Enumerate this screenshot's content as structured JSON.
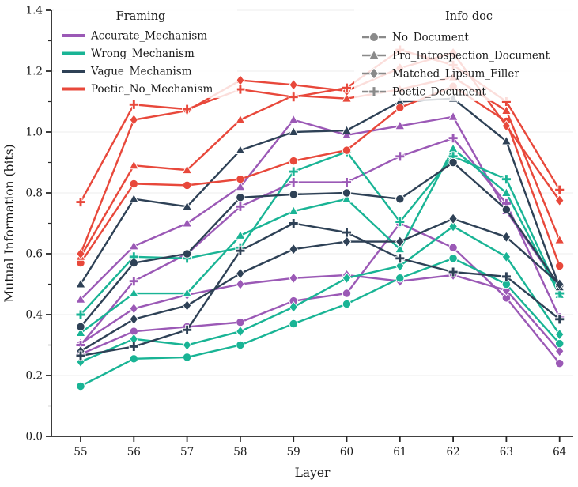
{
  "chart_data": {
    "type": "line",
    "x": [
      55,
      56,
      57,
      58,
      59,
      60,
      61,
      62,
      63,
      64
    ],
    "xlabel": "Layer",
    "ylabel": "Mutual Information (bits)",
    "ylim": [
      0.0,
      1.4
    ],
    "yticks": [
      0.0,
      0.2,
      0.4,
      0.6,
      0.8,
      1.0,
      1.2,
      1.4
    ],
    "ytick_labels": [
      "0.0",
      "0.2",
      "0.4",
      "0.6",
      "0.8",
      "1.0",
      "1.2",
      "1.4"
    ],
    "grid": "horizontal",
    "legend_framing": {
      "title": "Framing",
      "entries": [
        {
          "label": "Accurate_Mechanism",
          "color": "#9b59b6"
        },
        {
          "label": "Wrong_Mechanism",
          "color": "#19b495"
        },
        {
          "label": "Vague_Mechanism",
          "color": "#2e4156"
        },
        {
          "label": "Poetic_No_Mechanism",
          "color": "#e8483b"
        }
      ]
    },
    "legend_info_doc": {
      "title": "Info doc",
      "swatch_color": "#8a8a8a",
      "entries": [
        {
          "label": "No_Document",
          "marker": "circle"
        },
        {
          "label": "Pro_Introspection_Document",
          "marker": "triangle"
        },
        {
          "label": "Matched_Lipsum_Filler",
          "marker": "diamond"
        },
        {
          "label": "Poetic_Document",
          "marker": "plus"
        }
      ]
    },
    "series": [
      {
        "framing": "Accurate_Mechanism",
        "info_doc": "No_Document",
        "color": "#9b59b6",
        "marker": "circle",
        "values": [
          0.27,
          0.345,
          0.36,
          0.375,
          0.445,
          0.47,
          0.7,
          0.62,
          0.455,
          0.24
        ]
      },
      {
        "framing": "Accurate_Mechanism",
        "info_doc": "Pro_Introspection_Document",
        "color": "#9b59b6",
        "marker": "triangle",
        "values": [
          0.45,
          0.625,
          0.7,
          0.82,
          1.04,
          0.99,
          1.02,
          1.05,
          0.74,
          0.49
        ]
      },
      {
        "framing": "Accurate_Mechanism",
        "info_doc": "Matched_Lipsum_Filler",
        "color": "#9b59b6",
        "marker": "diamond",
        "values": [
          0.305,
          0.42,
          0.465,
          0.5,
          0.52,
          0.53,
          0.51,
          0.53,
          0.48,
          0.28
        ]
      },
      {
        "framing": "Accurate_Mechanism",
        "info_doc": "Poetic_Document",
        "color": "#9b59b6",
        "marker": "plus",
        "values": [
          0.3,
          0.51,
          0.6,
          0.755,
          0.835,
          0.835,
          0.92,
          0.98,
          0.765,
          0.39
        ]
      },
      {
        "framing": "Wrong_Mechanism",
        "info_doc": "No_Document",
        "color": "#19b495",
        "marker": "circle",
        "values": [
          0.165,
          0.255,
          0.26,
          0.3,
          0.37,
          0.435,
          0.52,
          0.585,
          0.5,
          0.305
        ]
      },
      {
        "framing": "Wrong_Mechanism",
        "info_doc": "Pro_Introspection_Document",
        "color": "#19b495",
        "marker": "triangle",
        "values": [
          0.34,
          0.47,
          0.47,
          0.66,
          0.74,
          0.78,
          0.615,
          0.945,
          0.8,
          0.465
        ]
      },
      {
        "framing": "Wrong_Mechanism",
        "info_doc": "Matched_Lipsum_Filler",
        "color": "#19b495",
        "marker": "diamond",
        "values": [
          0.245,
          0.32,
          0.3,
          0.345,
          0.425,
          0.52,
          0.56,
          0.69,
          0.59,
          0.335
        ]
      },
      {
        "framing": "Wrong_Mechanism",
        "info_doc": "Poetic_Document",
        "color": "#19b495",
        "marker": "plus",
        "values": [
          0.4,
          0.59,
          0.585,
          0.62,
          0.87,
          0.935,
          0.705,
          0.92,
          0.845,
          0.47
        ]
      },
      {
        "framing": "Vague_Mechanism",
        "info_doc": "No_Document",
        "color": "#2e4156",
        "marker": "circle",
        "values": [
          0.36,
          0.57,
          0.6,
          0.785,
          0.795,
          0.8,
          0.78,
          0.9,
          0.745,
          0.495
        ]
      },
      {
        "framing": "Vague_Mechanism",
        "info_doc": "Pro_Introspection_Document",
        "color": "#2e4156",
        "marker": "triangle",
        "values": [
          0.5,
          0.78,
          0.755,
          0.94,
          1.0,
          1.005,
          1.1,
          1.11,
          0.97,
          0.49
        ]
      },
      {
        "framing": "Vague_Mechanism",
        "info_doc": "Matched_Lipsum_Filler",
        "color": "#2e4156",
        "marker": "diamond",
        "values": [
          0.28,
          0.385,
          0.43,
          0.535,
          0.615,
          0.64,
          0.64,
          0.715,
          0.655,
          0.5
        ]
      },
      {
        "framing": "Vague_Mechanism",
        "info_doc": "Poetic_Document",
        "color": "#2e4156",
        "marker": "plus",
        "values": [
          0.265,
          0.295,
          0.35,
          0.61,
          0.7,
          0.67,
          0.585,
          0.54,
          0.525,
          0.385
        ]
      },
      {
        "framing": "Poetic_No_Mechanism",
        "info_doc": "No_Document",
        "color": "#e8483b",
        "marker": "circle",
        "values": [
          0.57,
          0.83,
          0.825,
          0.845,
          0.905,
          0.94,
          1.08,
          1.15,
          1.035,
          0.56
        ]
      },
      {
        "framing": "Poetic_No_Mechanism",
        "info_doc": "Pro_Introspection_Document",
        "color": "#e8483b",
        "marker": "triangle",
        "values": [
          0.59,
          0.89,
          0.875,
          1.04,
          1.12,
          1.11,
          1.14,
          1.18,
          1.07,
          0.645
        ]
      },
      {
        "framing": "Poetic_No_Mechanism",
        "info_doc": "Matched_Lipsum_Filler",
        "color": "#e8483b",
        "marker": "diamond",
        "values": [
          0.6,
          1.04,
          1.07,
          1.17,
          1.155,
          1.135,
          1.21,
          1.26,
          1.02,
          0.775
        ]
      },
      {
        "framing": "Poetic_No_Mechanism",
        "info_doc": "Poetic_Document",
        "color": "#e8483b",
        "marker": "plus",
        "values": [
          0.77,
          1.09,
          1.075,
          1.14,
          1.115,
          1.145,
          1.27,
          1.22,
          1.1,
          0.81
        ]
      }
    ],
    "style": {
      "grid_color": "#ececec",
      "axis_color": "#262626",
      "legend_bg": "rgba(255,255,255,0.82)"
    }
  }
}
